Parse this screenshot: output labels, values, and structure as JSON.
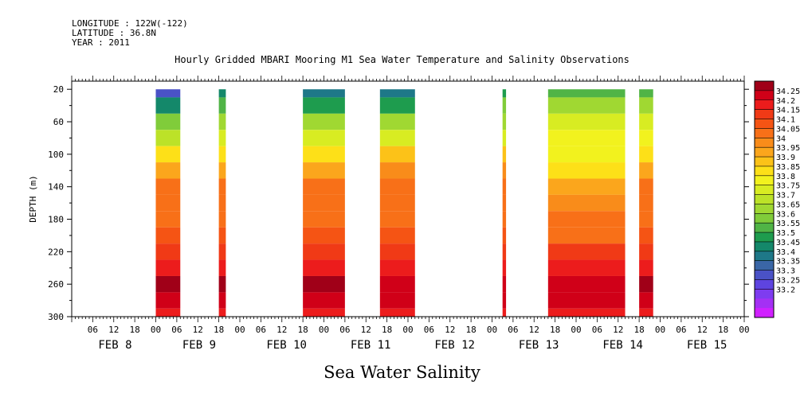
{
  "meta": {
    "longitude": "LONGITUDE : 122W(-122)",
    "latitude": "LATITUDE : 36.8N",
    "year": "YEAR : 2011"
  },
  "chart_data": {
    "type": "heatmap",
    "title": "Hourly Gridded MBARI Mooring M1 Sea Water Temperature and Salinity Observations",
    "variable_title": "Sea Water Salinity",
    "ylabel": "DEPTH (m)",
    "ylim": [
      300,
      10
    ],
    "y_ticks": [
      "20",
      "60",
      "100",
      "140",
      "180",
      "220",
      "260",
      "300"
    ],
    "x_hour_ticks": [
      "06",
      "12",
      "18",
      "00",
      "06",
      "12",
      "18",
      "00",
      "06",
      "12",
      "18",
      "00",
      "06",
      "12",
      "18",
      "00",
      "06",
      "12",
      "18",
      "00",
      "06",
      "12",
      "18",
      "00",
      "06",
      "12",
      "18",
      "00",
      "06",
      "12",
      "18",
      "00"
    ],
    "x_day_labels": [
      "FEB  8",
      "FEB  9",
      "FEB 10",
      "FEB 11",
      "FEB 12",
      "FEB 13",
      "FEB 14",
      "FEB 15"
    ],
    "x_range_hours": [
      0,
      192
    ],
    "colorbar_labels": [
      "34.25",
      "34.2",
      "34.15",
      "34.1",
      "34.05",
      "34",
      "33.95",
      "33.9",
      "33.85",
      "33.8",
      "33.75",
      "33.7",
      "33.65",
      "33.6",
      "33.55",
      "33.5",
      "33.45",
      "33.4",
      "33.35",
      "33.3",
      "33.25",
      "33.2"
    ],
    "colorbar_colors": [
      "#a00018",
      "#d00018",
      "#ec1c1c",
      "#f03a16",
      "#f55414",
      "#f87018",
      "#f98c1a",
      "#fba61c",
      "#fcc218",
      "#fde018",
      "#f2f21e",
      "#d8ec22",
      "#bce228",
      "#a0d832",
      "#80cc3a",
      "#50b446",
      "#1e9c4e",
      "#14886a",
      "#1e7888",
      "#3a66a6",
      "#4a52c6",
      "#5e44e0",
      "#7e3cf0",
      "#a430f4",
      "#d020ff"
    ],
    "depth_levels": [
      20,
      40,
      60,
      80,
      100,
      120,
      140,
      160,
      180,
      200,
      220,
      240,
      260,
      280,
      300
    ],
    "data_blocks": [
      {
        "start_hour": 24,
        "end_hour": 31,
        "salinity": [
          33.3,
          33.44,
          33.56,
          33.68,
          33.82,
          33.92,
          34.0,
          34.04,
          34.05,
          34.06,
          34.12,
          34.18,
          34.25,
          34.2,
          34.15
        ]
      },
      {
        "start_hour": 42,
        "end_hour": 44,
        "salinity": [
          33.42,
          33.5,
          33.6,
          33.7,
          33.84,
          33.93,
          34.01,
          34.05,
          34.05,
          34.06,
          34.12,
          34.18,
          34.25,
          34.2,
          34.15
        ]
      },
      {
        "start_hour": 66,
        "end_hour": 78,
        "salinity": [
          33.36,
          33.46,
          33.6,
          33.72,
          33.84,
          33.94,
          34.02,
          34.05,
          34.05,
          34.07,
          34.13,
          34.19,
          34.25,
          34.2,
          34.15
        ]
      },
      {
        "start_hour": 88,
        "end_hour": 98,
        "salinity": [
          33.38,
          33.48,
          33.62,
          33.74,
          33.86,
          33.95,
          34.02,
          34.05,
          34.05,
          34.07,
          34.13,
          34.19,
          34.22,
          34.2,
          34.15
        ]
      },
      {
        "start_hour": 123,
        "end_hour": 124,
        "salinity": [
          33.48,
          33.56,
          33.64,
          33.74,
          33.86,
          33.95,
          34.02,
          34.05,
          34.05,
          34.07,
          34.13,
          34.19,
          34.22,
          34.2,
          34.15
        ]
      },
      {
        "start_hour": 136,
        "end_hour": 158,
        "salinity": [
          33.52,
          33.62,
          33.7,
          33.76,
          33.78,
          33.82,
          33.9,
          33.98,
          34.02,
          34.05,
          34.1,
          34.17,
          34.22,
          34.2,
          34.15
        ]
      },
      {
        "start_hour": 162,
        "end_hour": 166,
        "salinity": [
          33.5,
          33.6,
          33.7,
          33.78,
          33.84,
          33.92,
          34.0,
          34.04,
          34.05,
          34.07,
          34.13,
          34.19,
          34.25,
          34.2,
          34.15
        ]
      }
    ]
  }
}
